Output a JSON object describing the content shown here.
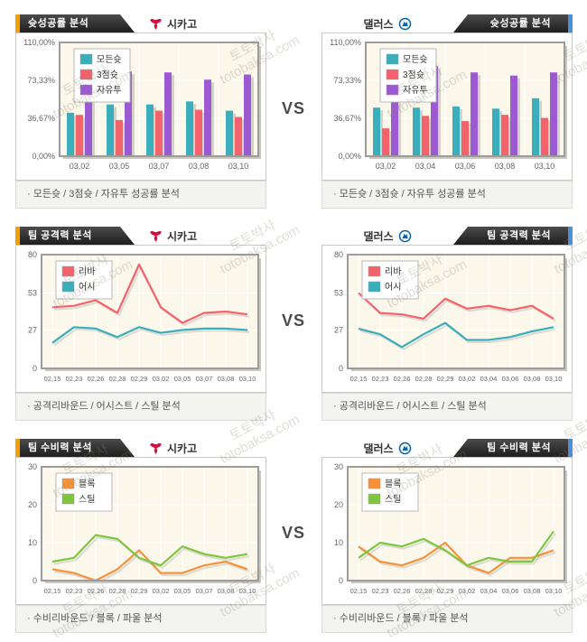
{
  "page": {
    "vs_label": "VS"
  },
  "watermark": {
    "line1": "토토박사",
    "line2": "totobaksa.com"
  },
  "teams": {
    "left": {
      "name": "시카고",
      "logo_icon": "chicago-bulls-logo"
    },
    "right": {
      "name": "댈러스",
      "logo_icon": "dallas-mavericks-logo"
    }
  },
  "colors": {
    "accent_left": "#F59E00",
    "accent_right": "#4B8FD8",
    "series_teal": "#3BAEBC",
    "series_red": "#F4626C",
    "series_purple": "#9D59D2",
    "series_orange": "#F79239",
    "series_green": "#7EC63F",
    "plot_bg": "#FBF7EB",
    "header_dark": "#2E2E2E"
  },
  "rows": [
    {
      "title": "슛성공률 분석",
      "footer": "· 모든슛 / 3점슛 / 자유투 성공률 분석"
    },
    {
      "title": "팀 공격력 분석",
      "footer": "· 공격리바운드 / 어시스트 / 스틸 분석"
    },
    {
      "title": "팀 수비력 분석",
      "footer": "· 수비리바운드 / 블록 / 파울 분석"
    }
  ],
  "chart_data": [
    {
      "type": "bar",
      "team": "시카고",
      "title": "시카고 슛성공률 분석",
      "categories": [
        "03,02",
        "03,05",
        "03,07",
        "03,08",
        "03,10"
      ],
      "series": [
        {
          "name": "모든슛",
          "color": "#3BAEBC",
          "values": [
            42,
            50,
            50,
            53,
            44
          ]
        },
        {
          "name": "3점슛",
          "color": "#F4626C",
          "values": [
            40,
            35,
            44,
            45,
            38
          ]
        },
        {
          "name": "자유투",
          "color": "#9D59D2",
          "values": [
            59,
            82,
            81,
            74,
            79
          ]
        }
      ],
      "ylim": [
        0,
        110
      ],
      "yticks": [
        {
          "v": 0,
          "label": "0,00%"
        },
        {
          "v": 36.67,
          "label": "36,67%"
        },
        {
          "v": 73.33,
          "label": "73,33%"
        },
        {
          "v": 110,
          "label": "110,00%"
        }
      ],
      "legend_position": "top-left",
      "grid": true
    },
    {
      "type": "bar",
      "team": "댈러스",
      "title": "댈러스 슛성공률 분석",
      "categories": [
        "03,02",
        "03,04",
        "03,06",
        "03,08",
        "03,10"
      ],
      "series": [
        {
          "name": "모든슛",
          "color": "#3BAEBC",
          "values": [
            47,
            47,
            48,
            46,
            56
          ]
        },
        {
          "name": "3점슛",
          "color": "#F4626C",
          "values": [
            27,
            39,
            34,
            40,
            37
          ]
        },
        {
          "name": "자유투",
          "color": "#9D59D2",
          "values": [
            59,
            87,
            81,
            78,
            81
          ]
        }
      ],
      "ylim": [
        0,
        110
      ],
      "yticks": [
        {
          "v": 0,
          "label": "0,00%"
        },
        {
          "v": 36.67,
          "label": "36,67%"
        },
        {
          "v": 73.33,
          "label": "73,33%"
        },
        {
          "v": 110,
          "label": "110,00%"
        }
      ],
      "legend_position": "top-left",
      "grid": true
    },
    {
      "type": "line",
      "team": "시카고",
      "title": "시카고 팀 공격력 분석",
      "categories": [
        "02,15",
        "02,23",
        "02,26",
        "02,28",
        "02,29",
        "03,02",
        "03,05",
        "03,07",
        "03,08",
        "03,10"
      ],
      "series": [
        {
          "name": "리바",
          "color": "#F4626C",
          "values": [
            43,
            44,
            48,
            39,
            73,
            43,
            32,
            39,
            40,
            38
          ]
        },
        {
          "name": "어시",
          "color": "#3BAEBC",
          "values": [
            18,
            29,
            28,
            22,
            29,
            25,
            27,
            28,
            28,
            27
          ]
        }
      ],
      "ylim": [
        0,
        80
      ],
      "yticks": [
        0,
        27,
        53,
        80
      ],
      "legend_position": "top-left",
      "grid": true
    },
    {
      "type": "line",
      "team": "댈러스",
      "title": "댈러스 팀 공격력 분석",
      "categories": [
        "02,15",
        "02,23",
        "02,26",
        "02,28",
        "02,29",
        "03,02",
        "03,04",
        "03,06",
        "03,08",
        "03,10"
      ],
      "series": [
        {
          "name": "리바",
          "color": "#F4626C",
          "values": [
            53,
            39,
            38,
            35,
            49,
            42,
            44,
            41,
            44,
            35
          ]
        },
        {
          "name": "어시",
          "color": "#3BAEBC",
          "values": [
            28,
            24,
            15,
            24,
            32,
            20,
            20,
            22,
            26,
            29
          ]
        }
      ],
      "ylim": [
        0,
        80
      ],
      "yticks": [
        0,
        27,
        53,
        80
      ],
      "legend_position": "top-left",
      "grid": true
    },
    {
      "type": "line",
      "team": "시카고",
      "title": "시카고 팀 수비력 분석",
      "categories": [
        "02,15",
        "02,23",
        "02,26",
        "02,28",
        "02,29",
        "03,02",
        "03,05",
        "03,07",
        "03,08",
        "03,10"
      ],
      "series": [
        {
          "name": "블록",
          "color": "#F79239",
          "values": [
            3,
            2,
            0,
            3,
            8,
            2,
            2,
            4,
            5,
            3
          ]
        },
        {
          "name": "스틸",
          "color": "#7EC63F",
          "values": [
            5,
            6,
            12,
            11,
            6,
            4,
            9,
            7,
            6,
            7
          ]
        }
      ],
      "ylim": [
        0,
        30
      ],
      "yticks": [
        0,
        10,
        20,
        30
      ],
      "legend_position": "top-left",
      "grid": true
    },
    {
      "type": "line",
      "team": "댈러스",
      "title": "댈러스 팀 수비력 분석",
      "categories": [
        "02,15",
        "02,23",
        "02,26",
        "02,28",
        "02,29",
        "03,02",
        "03,04",
        "03,06",
        "03,08",
        "03,10"
      ],
      "series": [
        {
          "name": "블록",
          "color": "#F79239",
          "values": [
            9,
            5,
            4,
            6,
            10,
            4,
            2,
            6,
            6,
            8
          ]
        },
        {
          "name": "스틸",
          "color": "#7EC63F",
          "values": [
            6,
            10,
            9,
            11,
            8,
            4,
            6,
            5,
            5,
            13
          ]
        }
      ],
      "ylim": [
        0,
        30
      ],
      "yticks": [
        0,
        10,
        20,
        30
      ],
      "legend_position": "top-left",
      "grid": true
    }
  ]
}
